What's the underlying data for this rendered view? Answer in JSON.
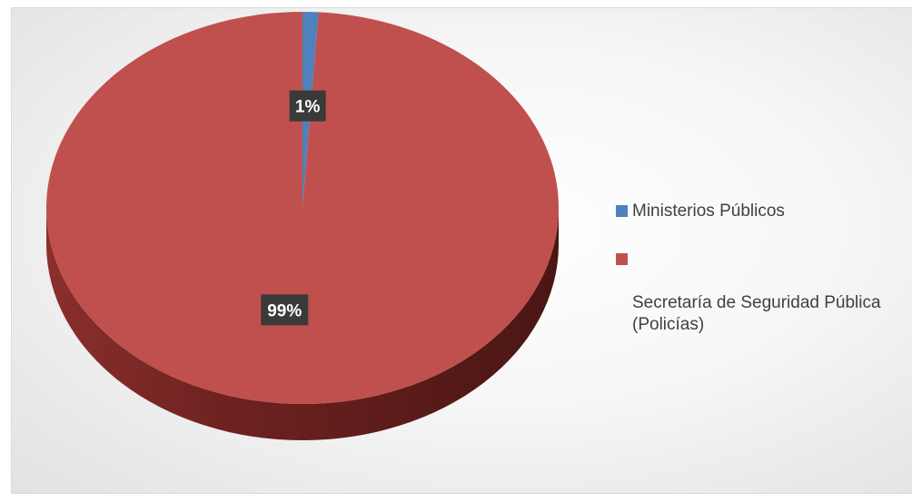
{
  "chart_data": {
    "type": "pie",
    "style": "3d",
    "categories": [
      "Ministerios Públicos",
      "Secretaría de Seguridad Pública (Policías)"
    ],
    "values": [
      1,
      99
    ],
    "data_labels": [
      "1%",
      "99%"
    ],
    "colors": [
      "#4f81bd",
      "#c0504d"
    ],
    "legend_position": "right"
  },
  "legend": {
    "items": [
      {
        "label": "Ministerios Públicos",
        "color": "#4f81bd"
      },
      {
        "label": "Secretaría de Seguridad Pública\n(Policías)",
        "color": "#c0504d"
      }
    ]
  }
}
